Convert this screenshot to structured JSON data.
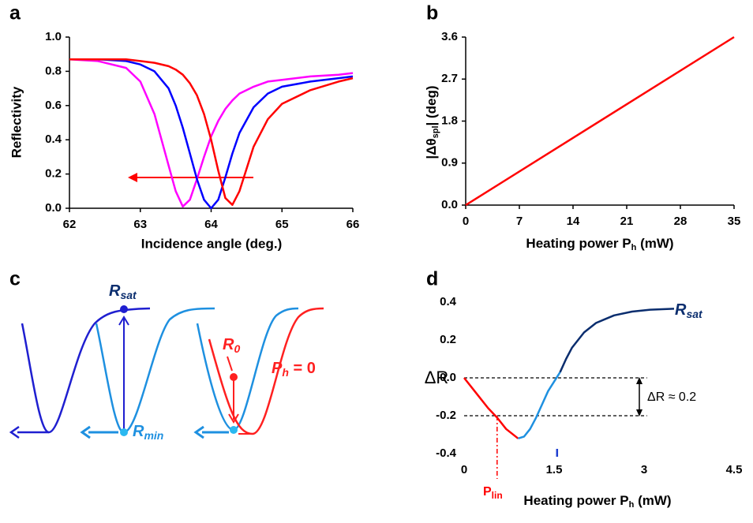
{
  "chart_data": [
    {
      "type": "line",
      "label": "a",
      "x_label": "Incidence angle (deg.)",
      "y_label": "Reflectivity",
      "x": [
        62,
        62.4,
        62.8,
        63.0,
        63.2,
        63.4,
        63.5,
        63.6,
        63.7,
        63.8,
        63.9,
        64.0,
        64.1,
        64.2,
        64.3,
        64.4,
        64.6,
        64.8,
        65.0,
        65.4,
        65.8,
        66
      ],
      "series": [
        {
          "color": "#ff00ff",
          "values": [
            0.87,
            0.86,
            0.82,
            0.74,
            0.55,
            0.25,
            0.1,
            0.01,
            0.05,
            0.17,
            0.3,
            0.42,
            0.51,
            0.58,
            0.63,
            0.67,
            0.71,
            0.74,
            0.75,
            0.77,
            0.78,
            0.79
          ]
        },
        {
          "color": "#0000ff",
          "values": [
            0.87,
            0.87,
            0.86,
            0.84,
            0.8,
            0.7,
            0.6,
            0.47,
            0.32,
            0.17,
            0.05,
            0.0,
            0.05,
            0.18,
            0.32,
            0.44,
            0.59,
            0.67,
            0.71,
            0.74,
            0.76,
            0.77
          ]
        },
        {
          "color": "#ff0000",
          "values": [
            0.87,
            0.87,
            0.87,
            0.86,
            0.85,
            0.83,
            0.81,
            0.78,
            0.73,
            0.66,
            0.55,
            0.4,
            0.22,
            0.06,
            0.02,
            0.1,
            0.36,
            0.52,
            0.61,
            0.69,
            0.74,
            0.76
          ]
        }
      ],
      "xlim": [
        62,
        66
      ],
      "ylim": [
        0,
        1
      ],
      "xticks": [
        62,
        63,
        64,
        65,
        66
      ],
      "yticks": [
        {
          "value": 0,
          "label": "0.0"
        },
        0.2,
        0.4,
        0.6,
        0.8,
        {
          "value": 1,
          "label": "1.0"
        }
      ],
      "axis_lines": true
    },
    {
      "type": "line",
      "label": "b",
      "x_label": "Heating power P",
      "x_label_sub": "h",
      "x_label_end": " (mW)",
      "y_label": "|Δθ",
      "y_label_sub": "spl",
      "y_label_end": "| (deg)",
      "x": [
        0,
        35
      ],
      "series": [
        {
          "color": "#ff0000",
          "values": [
            0,
            3.6
          ]
        }
      ],
      "xlim": [
        0,
        35
      ],
      "ylim": [
        0,
        3.6
      ],
      "xticks": [
        0,
        7,
        14,
        21,
        28,
        35
      ],
      "yticks": [
        {
          "value": 0,
          "label": "0.0"
        },
        0.9,
        1.8,
        2.7,
        3.6
      ],
      "axis_lines": true
    },
    {
      "type": "diagram",
      "label": "c",
      "annotations": [
        {
          "text": "R",
          "sub": "sat"
        },
        {
          "text": "R",
          "sub": "min"
        },
        {
          "text": "R",
          "sub": "0"
        },
        {
          "text": "P",
          "sub": "h",
          "end": " = 0"
        }
      ]
    },
    {
      "type": "line",
      "label": "d",
      "x_label": "Heating power P",
      "x_label_sub": "h",
      "x_label_end": " (mW)",
      "y_label": "ΔR",
      "series": [
        {
          "color": "#ff0000",
          "x": [
            0,
            0.2,
            0.4,
            0.55,
            0.7,
            0.9
          ],
          "values": [
            0,
            -0.08,
            -0.16,
            -0.21,
            -0.27,
            -0.32
          ]
        },
        {
          "color": "#1e90e0",
          "x": [
            0.9,
            1.0,
            1.1,
            1.2,
            1.3,
            1.4,
            1.5,
            1.6
          ],
          "values": [
            -0.32,
            -0.31,
            -0.27,
            -0.21,
            -0.14,
            -0.07,
            -0.02,
            0.03
          ]
        },
        {
          "color": "#0a2d6e",
          "x": [
            1.6,
            1.7,
            1.8,
            2.0,
            2.2,
            2.5,
            2.8,
            3.1,
            3.5
          ],
          "values": [
            0.03,
            0.1,
            0.16,
            0.24,
            0.29,
            0.33,
            0.35,
            0.36,
            0.365
          ]
        }
      ],
      "xlim": [
        0,
        4.5
      ],
      "ylim": [
        -0.4,
        0.4
      ],
      "xticks": [
        0,
        1.5,
        3,
        4.5
      ],
      "yticks": [
        -0.4,
        -0.2,
        {
          "value": 0,
          "label": "0.0"
        },
        0.2,
        0.4
      ],
      "axis_lines": false,
      "reference_y": [
        0,
        -0.2
      ],
      "reference_end_x": 3.05,
      "p_lin_x": 0.55,
      "marker_x": 1.55,
      "delta_label": "ΔR ≈ 0.2",
      "p_lin_label": "P",
      "p_lin_label_sub": "lin",
      "r_sat_label": "R",
      "r_sat_label_sub": "sat"
    }
  ]
}
